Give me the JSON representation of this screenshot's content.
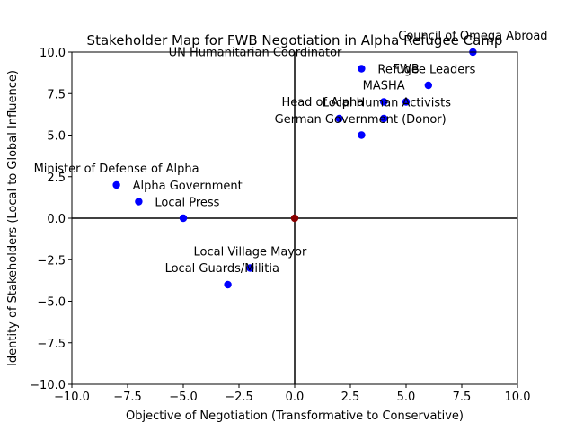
{
  "chart_data": {
    "type": "scatter",
    "title": "Stakeholder Map for FWB Negotiation in Alpha Refugee Camp",
    "xlabel": "Objective of Negotiation (Transformative to Conservative)",
    "ylabel": "Identity of Stakeholders (Local to Global Influence)",
    "xlim": [
      -10,
      10
    ],
    "ylim": [
      -10,
      10
    ],
    "xticks": [
      -10.0,
      -7.5,
      -5.0,
      -2.5,
      0.0,
      2.5,
      5.0,
      7.5,
      10.0
    ],
    "yticks": [
      -10.0,
      -7.5,
      -5.0,
      -2.5,
      0.0,
      2.5,
      5.0,
      7.5,
      10.0
    ],
    "xtick_labels": [
      "−10.0",
      "−7.5",
      "−5.0",
      "−2.5",
      "0.0",
      "2.5",
      "5.0",
      "7.5",
      "10.0"
    ],
    "ytick_labels": [
      "−10.0",
      "−7.5",
      "−5.0",
      "−2.5",
      "0.0",
      "2.5",
      "5.0",
      "7.5",
      "10.0"
    ],
    "grid": false,
    "reference_lines": {
      "x": 0,
      "y": 0
    },
    "colors": {
      "points": "#0000ff",
      "origin": "#8b0000",
      "axes": "#000000"
    },
    "points": [
      {
        "label": "Council of Omega Abroad",
        "x": 8,
        "y": 10,
        "label_anchor": "middle",
        "label_pos": "above"
      },
      {
        "label": "UN Humanitarian Coordinator",
        "x": 3,
        "y": 9,
        "label_anchor": "end",
        "label_pos": "above-left"
      },
      {
        "label": "Refugee Leaders",
        "x": 3,
        "y": 9,
        "label_anchor": "start",
        "label_pos": "right"
      },
      {
        "label": "FWB",
        "x": 6,
        "y": 8,
        "label_anchor": "end",
        "label_pos": "left"
      },
      {
        "label": "MASHA",
        "x": 4,
        "y": 7,
        "label_anchor": "middle",
        "label_pos": "above"
      },
      {
        "label": "Local Human Activists",
        "x": 5,
        "y": 7,
        "label_anchor": "end",
        "label_pos": "right-overlap"
      },
      {
        "label": "Head of Alpha",
        "x": 4,
        "y": 6,
        "label_anchor": "end",
        "label_pos": "above-left"
      },
      {
        "label": "German Government (Donor)",
        "x": 4,
        "y": 6,
        "label_anchor": "middle",
        "label_pos": "centered"
      },
      {
        "label": "",
        "x": 2,
        "y": 6
      },
      {
        "label": "",
        "x": 3,
        "y": 5
      },
      {
        "label": "Minister of Defense of Alpha",
        "x": -8,
        "y": 2,
        "label_anchor": "middle",
        "label_pos": "above"
      },
      {
        "label": "Alpha Government",
        "x": -8,
        "y": 2,
        "label_anchor": "start",
        "label_pos": "right"
      },
      {
        "label": "Local Press",
        "x": -7,
        "y": 1,
        "label_anchor": "start",
        "label_pos": "right"
      },
      {
        "label": "",
        "x": -5,
        "y": 0
      },
      {
        "label": "Local Village Mayor",
        "x": -2,
        "y": -3,
        "label_anchor": "middle",
        "label_pos": "above"
      },
      {
        "label": "Local Guards/Militia",
        "x": -3,
        "y": -4,
        "label_anchor": "start",
        "label_pos": "above-right"
      }
    ],
    "origin_point": {
      "x": 0,
      "y": 0
    }
  }
}
